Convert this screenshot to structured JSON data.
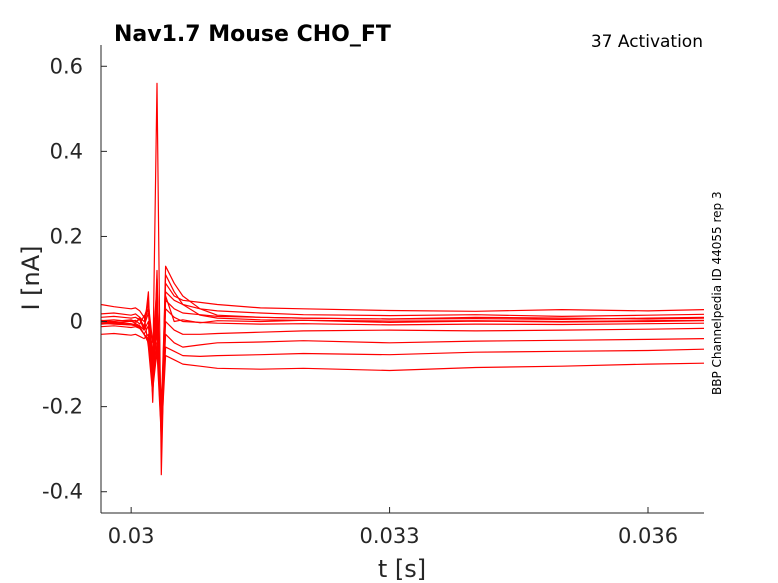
{
  "chart_data": {
    "type": "line",
    "title": "Nav1.7  Mouse  CHO_FT",
    "subtitle": "37  Activation",
    "side_note": "BBP Channelpedia ID 44055 rep 3",
    "xlabel": "t [s]",
    "ylabel": "I [nA]",
    "xlim": [
      0.02965,
      0.03665
    ],
    "ylim": [
      -0.45,
      0.65
    ],
    "xticks": [
      0.03,
      0.033,
      0.036
    ],
    "xtick_labels": [
      "0.03",
      "0.033",
      "0.036"
    ],
    "yticks": [
      0.6,
      0.4,
      0.2,
      0,
      -0.2,
      -0.4
    ],
    "ytick_labels": [
      "0.6",
      "0.4",
      "0.2",
      "0",
      "-0.2",
      "-0.4"
    ],
    "grid": false,
    "line_color": "#ff0000",
    "axis_color": "#262626",
    "series": [
      {
        "x": [
          0.02965,
          0.0298,
          0.03,
          0.03005,
          0.0301,
          0.03015,
          0.0302,
          0.03025,
          0.0303,
          0.03035,
          0.0304,
          0.0305,
          0.0306,
          0.0308,
          0.031,
          0.0315,
          0.032,
          0.033,
          0.034,
          0.035,
          0.036,
          0.03665
        ],
        "y": [
          -0.001,
          -0.004,
          0.001,
          -0.004,
          0.01,
          -0.016,
          0.05,
          -0.12,
          0.56,
          -0.36,
          0.06,
          0.0,
          0.004,
          -0.003,
          0.002,
          0.0,
          0.003,
          -0.002,
          0.001,
          -0.001,
          0.0,
          0.002
        ]
      },
      {
        "x": [
          0.02965,
          0.0298,
          0.03,
          0.03005,
          0.0301,
          0.03015,
          0.0302,
          0.03025,
          0.0303,
          0.03035,
          0.0304,
          0.0305,
          0.0306,
          0.0308,
          0.031,
          0.0315,
          0.032,
          0.033,
          0.034,
          0.035,
          0.036,
          0.03665
        ],
        "y": [
          0.002,
          0.004,
          0.0,
          0.003,
          -0.006,
          0.014,
          -0.06,
          -0.17,
          0.12,
          -0.29,
          0.11,
          0.07,
          0.04,
          0.015,
          0.008,
          0.004,
          0.003,
          0.001,
          0.002,
          0.0,
          0.002,
          0.003
        ]
      },
      {
        "x": [
          0.02965,
          0.0298,
          0.03,
          0.03005,
          0.0301,
          0.03015,
          0.0302,
          0.03025,
          0.0303,
          0.03035,
          0.0304,
          0.0305,
          0.0306,
          0.0308,
          0.031,
          0.0315,
          0.032,
          0.033,
          0.034,
          0.035,
          0.036,
          0.03665
        ],
        "y": [
          0.003,
          0.0,
          0.004,
          0.0,
          0.005,
          -0.02,
          0.07,
          -0.19,
          0.1,
          -0.27,
          0.13,
          0.09,
          0.06,
          0.03,
          0.015,
          0.01,
          0.008,
          0.006,
          0.01,
          0.008,
          0.006,
          0.008
        ]
      },
      {
        "x": [
          0.02965,
          0.0298,
          0.03,
          0.03005,
          0.0301,
          0.03015,
          0.0302,
          0.03025,
          0.0303,
          0.03035,
          0.0304,
          0.0305,
          0.0306,
          0.0308,
          0.031,
          0.0315,
          0.032,
          0.033,
          0.034,
          0.035,
          0.036,
          0.03665
        ],
        "y": [
          0.04,
          0.035,
          0.03,
          0.032,
          0.025,
          0.01,
          0.04,
          -0.05,
          0.08,
          -0.2,
          0.09,
          0.06,
          0.05,
          0.045,
          0.04,
          0.032,
          0.03,
          0.026,
          0.024,
          0.028,
          0.025,
          0.028
        ]
      },
      {
        "x": [
          0.02965,
          0.0298,
          0.03,
          0.03005,
          0.0301,
          0.03015,
          0.0302,
          0.03025,
          0.0303,
          0.03035,
          0.0304,
          0.0305,
          0.0306,
          0.0308,
          0.031,
          0.0315,
          0.032,
          0.033,
          0.034,
          0.035,
          0.036,
          0.03665
        ],
        "y": [
          0.018,
          0.02,
          0.015,
          0.018,
          0.01,
          0.0,
          0.03,
          -0.08,
          0.06,
          -0.22,
          0.07,
          0.05,
          0.04,
          0.03,
          0.025,
          0.02,
          0.016,
          0.014,
          0.016,
          0.012,
          0.015,
          0.017
        ]
      },
      {
        "x": [
          0.02965,
          0.0298,
          0.03,
          0.03005,
          0.0301,
          0.03015,
          0.0302,
          0.03025,
          0.0303,
          0.03035,
          0.0304,
          0.0305,
          0.0306,
          0.0308,
          0.031,
          0.0315,
          0.032,
          0.033,
          0.034,
          0.035,
          0.036,
          0.03665
        ],
        "y": [
          0.01,
          0.012,
          0.008,
          0.01,
          0.004,
          -0.01,
          0.02,
          -0.1,
          0.04,
          -0.23,
          0.05,
          0.03,
          0.02,
          0.016,
          0.012,
          0.01,
          0.008,
          0.006,
          0.007,
          0.005,
          0.008,
          0.01
        ]
      },
      {
        "x": [
          0.02965,
          0.0298,
          0.03,
          0.03005,
          0.0301,
          0.03015,
          0.0302,
          0.03025,
          0.0303,
          0.03035,
          0.0304,
          0.0305,
          0.0306,
          0.0308,
          0.031,
          0.0315,
          0.032,
          0.033,
          0.034,
          0.035,
          0.036,
          0.03665
        ],
        "y": [
          -0.006,
          -0.004,
          -0.008,
          -0.005,
          -0.01,
          -0.02,
          0.0,
          -0.12,
          0.02,
          -0.24,
          0.03,
          0.01,
          0.0,
          -0.002,
          -0.004,
          -0.006,
          -0.005,
          -0.008,
          -0.006,
          -0.007,
          -0.005,
          -0.004
        ]
      },
      {
        "x": [
          0.02965,
          0.0298,
          0.03,
          0.03005,
          0.0301,
          0.03015,
          0.0302,
          0.03025,
          0.0303,
          0.03035,
          0.0304,
          0.0305,
          0.0306,
          0.0308,
          0.031,
          0.0315,
          0.032,
          0.033,
          0.034,
          0.035,
          0.036,
          0.03665
        ],
        "y": [
          -0.012,
          -0.01,
          -0.014,
          -0.012,
          -0.016,
          -0.03,
          -0.01,
          -0.13,
          0.0,
          -0.25,
          0.0,
          -0.02,
          -0.03,
          -0.03,
          -0.028,
          -0.025,
          -0.022,
          -0.02,
          -0.022,
          -0.02,
          -0.018,
          -0.016
        ]
      },
      {
        "x": [
          0.02965,
          0.0298,
          0.03,
          0.03005,
          0.0301,
          0.03015,
          0.0302,
          0.03025,
          0.0303,
          0.03035,
          0.0304,
          0.0305,
          0.0306,
          0.0308,
          0.031,
          0.0315,
          0.032,
          0.033,
          0.034,
          0.035,
          0.036,
          0.03665
        ],
        "y": [
          -0.03,
          -0.028,
          -0.032,
          -0.03,
          -0.035,
          -0.04,
          -0.03,
          -0.14,
          -0.02,
          -0.25,
          -0.03,
          -0.05,
          -0.06,
          -0.055,
          -0.05,
          -0.048,
          -0.045,
          -0.05,
          -0.046,
          -0.044,
          -0.042,
          -0.04
        ]
      },
      {
        "x": [
          0.02965,
          0.0298,
          0.03,
          0.03005,
          0.0301,
          0.03015,
          0.0302,
          0.03025,
          0.0303,
          0.03035,
          0.0304,
          0.0305,
          0.0306,
          0.0308,
          0.031,
          0.0315,
          0.032,
          0.033,
          0.034,
          0.035,
          0.036,
          0.03665
        ],
        "y": [
          -0.004,
          -0.006,
          -0.008,
          -0.01,
          -0.015,
          -0.03,
          -0.04,
          -0.15,
          -0.05,
          -0.26,
          -0.06,
          -0.07,
          -0.08,
          -0.082,
          -0.08,
          -0.078,
          -0.075,
          -0.078,
          -0.072,
          -0.07,
          -0.068,
          -0.065
        ]
      },
      {
        "x": [
          0.02965,
          0.0298,
          0.03,
          0.03005,
          0.0301,
          0.03015,
          0.0302,
          0.03025,
          0.0303,
          0.03035,
          0.0304,
          0.0305,
          0.0306,
          0.0308,
          0.031,
          0.0315,
          0.032,
          0.033,
          0.034,
          0.035,
          0.036,
          0.03665
        ],
        "y": [
          0.0,
          -0.002,
          -0.005,
          -0.008,
          -0.012,
          -0.03,
          -0.05,
          -0.16,
          -0.07,
          -0.27,
          -0.08,
          -0.09,
          -0.1,
          -0.105,
          -0.11,
          -0.112,
          -0.11,
          -0.115,
          -0.108,
          -0.105,
          -0.1,
          -0.098
        ]
      }
    ]
  }
}
